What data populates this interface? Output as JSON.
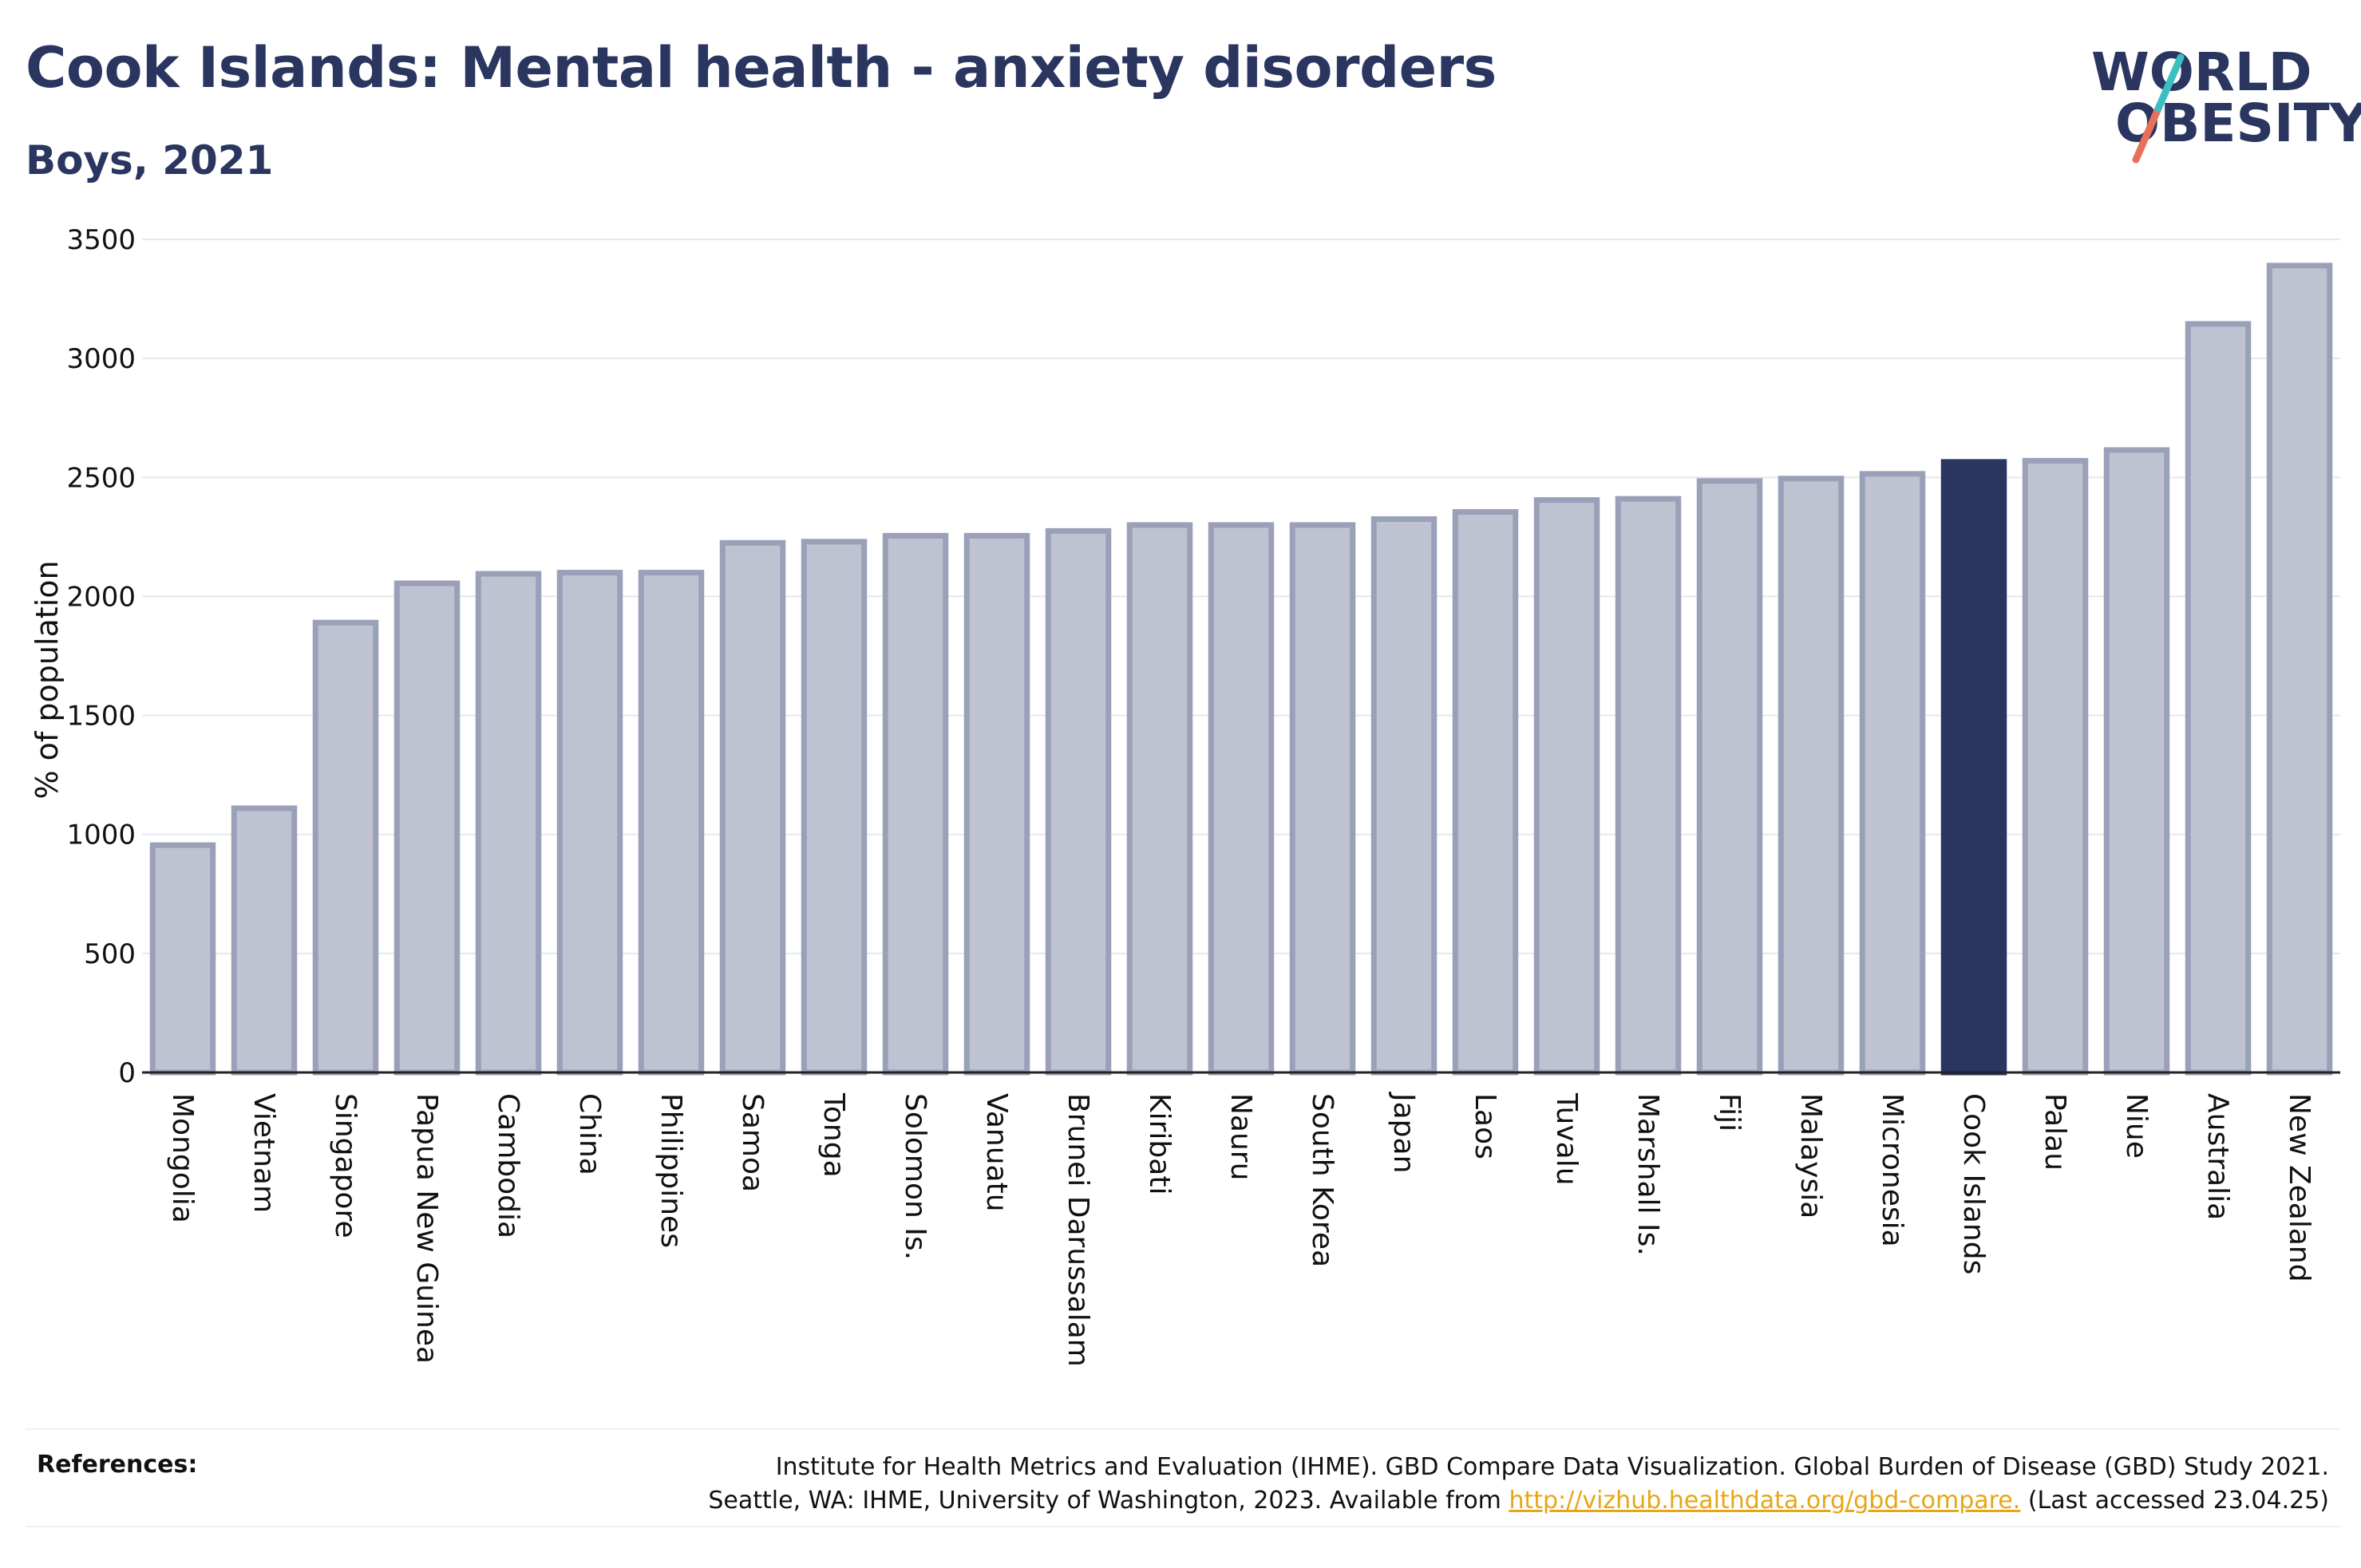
{
  "header": {
    "title": "Cook Islands: Mental health - anxiety disorders",
    "subtitle": "Boys, 2021"
  },
  "logo": {
    "line1": "WORLD",
    "line2": "OBESITY",
    "stroke_colors": [
      "#e8705b",
      "#3cbfc3"
    ]
  },
  "chart_data": {
    "type": "bar",
    "title": "Cook Islands: Mental health - anxiety disorders",
    "subtitle": "Boys, 2021",
    "ylabel": "% of population",
    "xlabel": "",
    "ylim": [
      0,
      3500
    ],
    "yticks": [
      0,
      500,
      1000,
      1500,
      2000,
      2500,
      3000,
      3500
    ],
    "grid": true,
    "highlight": "Cook Islands",
    "colors": {
      "default_fill": "#bfc3d1",
      "default_stroke": "#9aa0b8",
      "highlight_fill": "#2a3560"
    },
    "categories": [
      "Mongolia",
      "Vietnam",
      "Singapore",
      "Papua New Guinea",
      "Cambodia",
      "China",
      "Philippines",
      "Samoa",
      "Tonga",
      "Solomon Is.",
      "Vanuatu",
      "Brunei Darussalam",
      "Kiribati",
      "Nauru",
      "South Korea",
      "Japan",
      "Laos",
      "Tuvalu",
      "Marshall Is.",
      "Fiji",
      "Malaysia",
      "Micronesia",
      "Cook Islands",
      "Palau",
      "Niue",
      "Australia",
      "New Zealand"
    ],
    "values": [
      955,
      1110,
      1890,
      2055,
      2095,
      2100,
      2100,
      2225,
      2230,
      2255,
      2255,
      2275,
      2300,
      2300,
      2300,
      2325,
      2355,
      2405,
      2410,
      2485,
      2495,
      2515,
      2565,
      2570,
      2615,
      3145,
      3390
    ]
  },
  "references": {
    "label": "References:",
    "line1": "Institute for Health Metrics and Evaluation (IHME). GBD Compare Data Visualization. Global Burden of Disease (GBD) Study 2021.",
    "line2_before": "Seattle, WA: IHME, University of Washington, 2023. Available from ",
    "link": "http://vizhub.healthdata.org/gbd-compare.",
    "line2_after": " (Last accessed 23.04.25)"
  }
}
